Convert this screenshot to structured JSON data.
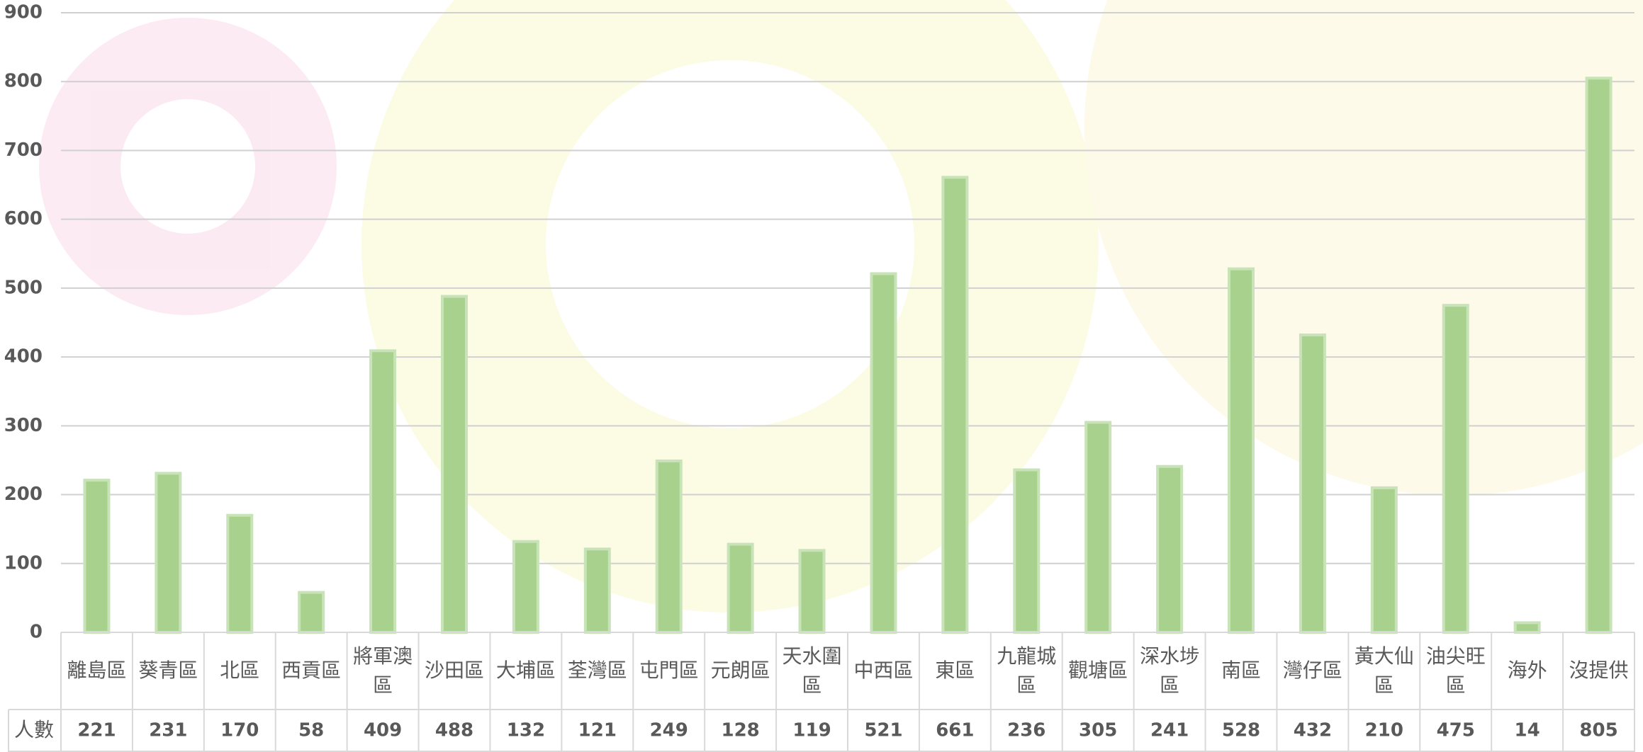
{
  "chart_data": {
    "type": "bar",
    "categories": [
      "離島區",
      "葵青區",
      "北區",
      "西貢區",
      "將軍澳區",
      "沙田區",
      "大埔區",
      "荃灣區",
      "屯門區",
      "元朗區",
      "天水圍區",
      "中西區",
      "東區",
      "九龍城區",
      "觀塘區",
      "深水埗區",
      "南區",
      "灣仔區",
      "黃大仙區",
      "油尖旺區",
      "海外",
      "沒提供"
    ],
    "series": [
      {
        "name": "人數",
        "color": "#a9d18e",
        "values": [
          221,
          231,
          170,
          58,
          409,
          488,
          132,
          121,
          249,
          128,
          119,
          521,
          661,
          236,
          305,
          241,
          528,
          432,
          210,
          475,
          14,
          805
        ]
      }
    ],
    "ylim": [
      0,
      900
    ],
    "yticks": [
      0,
      100,
      200,
      300,
      400,
      500,
      600,
      700,
      800,
      900
    ],
    "grid": true
  }
}
